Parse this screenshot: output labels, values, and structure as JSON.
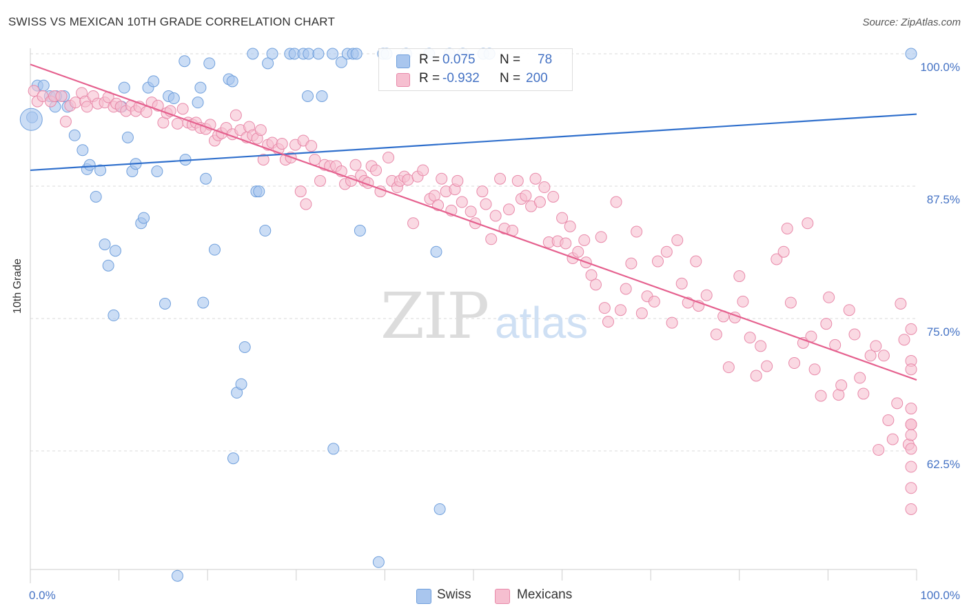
{
  "title": "SWISS VS MEXICAN 10TH GRADE CORRELATION CHART",
  "source": "Source: ZipAtlas.com",
  "watermark": {
    "zip": "ZIP",
    "atlas": "atlas"
  },
  "colors": {
    "swiss_fill": "#a9c6ee",
    "swiss_stroke": "#6f9fdc",
    "swiss_line": "#2f6fcc",
    "mex_fill": "#f6bfd0",
    "mex_stroke": "#e889a9",
    "mex_line": "#e5608e",
    "axis_text": "#4472c4",
    "grid": "#d9d9d9"
  },
  "legend": {
    "r_label": "R =",
    "n_label": "N =",
    "swiss": {
      "r": "0.075",
      "n": "78"
    },
    "mexicans": {
      "r": "-0.932",
      "n": "200"
    }
  },
  "bottom_legend": {
    "swiss": "Swiss",
    "mexicans": "Mexicans"
  },
  "chart_data": {
    "type": "scatter",
    "title": "SWISS VS MEXICAN 10TH GRADE CORRELATION CHART",
    "xlabel": "",
    "ylabel": "10th Grade",
    "xlim": [
      0,
      100
    ],
    "ylim": [
      51,
      102
    ],
    "x_tick_labels": [
      "0.0%",
      "100.0%"
    ],
    "y_ticks": [
      62.5,
      75.0,
      87.5,
      100.0
    ],
    "y_tick_labels": [
      "62.5%",
      "75.0%",
      "87.5%",
      "100.0%"
    ],
    "grid": true,
    "legend_position": "top-center",
    "series": [
      {
        "name": "Swiss",
        "r": 0.075,
        "n": 78,
        "trend": {
          "x0": 0,
          "y0": 89.0,
          "x1": 100,
          "y1": 94.3
        },
        "points": [
          [
            0.2,
            94
          ],
          [
            0.8,
            97
          ],
          [
            1.5,
            97
          ],
          [
            2.2,
            96
          ],
          [
            2.8,
            95
          ],
          [
            3.8,
            96
          ],
          [
            4.2,
            95
          ],
          [
            2.9,
            96
          ],
          [
            5,
            92.3
          ],
          [
            5.9,
            90.9
          ],
          [
            6.4,
            89.1
          ],
          [
            6.7,
            89.5
          ],
          [
            7.4,
            86.5
          ],
          [
            7.9,
            89
          ],
          [
            8.4,
            82
          ],
          [
            8.8,
            80
          ],
          [
            9.6,
            81.4
          ],
          [
            9.4,
            75.3
          ],
          [
            10.3,
            95
          ],
          [
            10.6,
            96.8
          ],
          [
            11,
            92.1
          ],
          [
            11.5,
            88.9
          ],
          [
            11.9,
            89.6
          ],
          [
            12.5,
            84
          ],
          [
            12.8,
            84.5
          ],
          [
            13.3,
            96.8
          ],
          [
            13.9,
            97.4
          ],
          [
            14.3,
            88.9
          ],
          [
            15.2,
            76.4
          ],
          [
            15.6,
            96
          ],
          [
            16.2,
            95.8
          ],
          [
            16.6,
            50.7
          ],
          [
            17.4,
            99.3
          ],
          [
            17.5,
            90
          ],
          [
            18.9,
            95.4
          ],
          [
            19.2,
            96.8
          ],
          [
            19.5,
            76.5
          ],
          [
            19.8,
            88.2
          ],
          [
            20.2,
            99.1
          ],
          [
            20.8,
            81.5
          ],
          [
            22.4,
            97.6
          ],
          [
            22.8,
            97.4
          ],
          [
            22.9,
            61.8
          ],
          [
            23.3,
            68
          ],
          [
            23.8,
            68.8
          ],
          [
            24.2,
            72.3
          ],
          [
            25.1,
            100
          ],
          [
            25.5,
            87
          ],
          [
            25.8,
            87
          ],
          [
            26.5,
            83.3
          ],
          [
            26.8,
            99.1
          ],
          [
            27.3,
            100
          ],
          [
            29.3,
            100
          ],
          [
            29.8,
            100
          ],
          [
            30.8,
            100
          ],
          [
            31.4,
            100
          ],
          [
            31.3,
            96
          ],
          [
            32.5,
            100
          ],
          [
            32.9,
            96
          ],
          [
            34.1,
            100
          ],
          [
            34.2,
            62.7
          ],
          [
            35.1,
            99.2
          ],
          [
            35.8,
            100
          ],
          [
            36.4,
            100
          ],
          [
            36.8,
            100
          ],
          [
            37.2,
            83.3
          ],
          [
            39.3,
            52
          ],
          [
            39.8,
            100
          ],
          [
            40.2,
            100
          ],
          [
            42.4,
            100
          ],
          [
            45,
            100
          ],
          [
            45.8,
            81.3
          ],
          [
            46.2,
            57
          ],
          [
            47.3,
            100
          ],
          [
            48.8,
            100
          ],
          [
            51.1,
            100
          ],
          [
            51.8,
            100
          ],
          [
            99.9,
            100
          ]
        ],
        "big_points": [
          [
            0.1,
            93.8,
            16
          ]
        ]
      },
      {
        "name": "Mexicans",
        "r": -0.932,
        "n": 200,
        "trend": {
          "x0": 0,
          "y0": 99.0,
          "x1": 100,
          "y1": 69.2
        },
        "points": [
          [
            0.4,
            96.5
          ],
          [
            0.8,
            95.5
          ],
          [
            1.4,
            96
          ],
          [
            2.3,
            95.5
          ],
          [
            2.7,
            96
          ],
          [
            3.5,
            96
          ],
          [
            4,
            93.6
          ],
          [
            4.5,
            95.1
          ],
          [
            5.1,
            95.4
          ],
          [
            5.8,
            96.3
          ],
          [
            6.2,
            95.5
          ],
          [
            6.4,
            95
          ],
          [
            7.1,
            96
          ],
          [
            7.6,
            95.3
          ],
          [
            8.4,
            95.4
          ],
          [
            8.8,
            95.9
          ],
          [
            9.4,
            95
          ],
          [
            9.7,
            95.3
          ],
          [
            10.2,
            95
          ],
          [
            10.8,
            94.6
          ],
          [
            11.4,
            95.1
          ],
          [
            11.9,
            94.6
          ],
          [
            12.3,
            95
          ],
          [
            13.1,
            94.5
          ],
          [
            13.7,
            95.4
          ],
          [
            14.4,
            95.1
          ],
          [
            15,
            93.5
          ],
          [
            15.4,
            94.4
          ],
          [
            15.8,
            94.6
          ],
          [
            16.6,
            93.4
          ],
          [
            17.2,
            94.8
          ],
          [
            17.8,
            93.5
          ],
          [
            18.3,
            93.3
          ],
          [
            18.7,
            93.5
          ],
          [
            19.2,
            93
          ],
          [
            19.8,
            92.9
          ],
          [
            20.3,
            93.3
          ],
          [
            20.8,
            91.8
          ],
          [
            21.2,
            92.3
          ],
          [
            21.6,
            92.5
          ],
          [
            22.1,
            93
          ],
          [
            22.8,
            92.4
          ],
          [
            23.2,
            94.2
          ],
          [
            23.7,
            92.8
          ],
          [
            24.4,
            92.1
          ],
          [
            24.7,
            93.1
          ],
          [
            25.1,
            92.3
          ],
          [
            25.6,
            92
          ],
          [
            26,
            92.8
          ],
          [
            26.3,
            90
          ],
          [
            26.8,
            91.4
          ],
          [
            27.3,
            91.6
          ],
          [
            28,
            91
          ],
          [
            28.4,
            91.5
          ],
          [
            28.8,
            90
          ],
          [
            29.4,
            90.2
          ],
          [
            29.9,
            91.4
          ],
          [
            30.5,
            87
          ],
          [
            30.8,
            91.8
          ],
          [
            31.1,
            85.8
          ],
          [
            31.7,
            91.3
          ],
          [
            32.1,
            90
          ],
          [
            32.7,
            88
          ],
          [
            33.2,
            89.5
          ],
          [
            33.8,
            89.4
          ],
          [
            34.5,
            89.4
          ],
          [
            35.1,
            88.9
          ],
          [
            35.5,
            87.7
          ],
          [
            36.2,
            88
          ],
          [
            36.7,
            89.5
          ],
          [
            37.3,
            88.5
          ],
          [
            37.7,
            88
          ],
          [
            38.1,
            87.8
          ],
          [
            38.5,
            89.4
          ],
          [
            39,
            89
          ],
          [
            39.5,
            87
          ],
          [
            40.4,
            90.2
          ],
          [
            40.8,
            88
          ],
          [
            41.4,
            87.4
          ],
          [
            41.7,
            88
          ],
          [
            42.2,
            88.4
          ],
          [
            42.6,
            88.1
          ],
          [
            43.2,
            84
          ],
          [
            43.7,
            88.4
          ],
          [
            44.3,
            89
          ],
          [
            45.1,
            86.3
          ],
          [
            45.6,
            86.6
          ],
          [
            46,
            85.7
          ],
          [
            46.4,
            88.2
          ],
          [
            46.9,
            87
          ],
          [
            47.5,
            85.2
          ],
          [
            47.9,
            87.2
          ],
          [
            48.2,
            88
          ],
          [
            48.7,
            86
          ],
          [
            49.7,
            85.1
          ],
          [
            50.2,
            84
          ],
          [
            51,
            87
          ],
          [
            51.4,
            85.8
          ],
          [
            52,
            82.5
          ],
          [
            52.5,
            84.7
          ],
          [
            53,
            88.2
          ],
          [
            53.5,
            83.5
          ],
          [
            54,
            85.3
          ],
          [
            54.4,
            83.3
          ],
          [
            55,
            88
          ],
          [
            55.4,
            86.3
          ],
          [
            55.9,
            86.6
          ],
          [
            56.5,
            85.6
          ],
          [
            57,
            88.2
          ],
          [
            57.5,
            86
          ],
          [
            58,
            87.4
          ],
          [
            58.5,
            82.2
          ],
          [
            59,
            86.5
          ],
          [
            59.5,
            82.3
          ],
          [
            60,
            84.5
          ],
          [
            60.4,
            82.1
          ],
          [
            60.9,
            83.7
          ],
          [
            61.2,
            80.7
          ],
          [
            61.8,
            81.3
          ],
          [
            62.5,
            82.4
          ],
          [
            62.7,
            80.3
          ],
          [
            63.3,
            79.1
          ],
          [
            63.8,
            78.2
          ],
          [
            64.4,
            82.7
          ],
          [
            64.8,
            76
          ],
          [
            65.2,
            74.7
          ],
          [
            66.1,
            86
          ],
          [
            66.6,
            75.8
          ],
          [
            67.2,
            77.8
          ],
          [
            67.8,
            80.2
          ],
          [
            68.4,
            83.2
          ],
          [
            69,
            75.5
          ],
          [
            69.6,
            77.1
          ],
          [
            70.4,
            76.6
          ],
          [
            70.8,
            80.4
          ],
          [
            71.8,
            81.3
          ],
          [
            72.4,
            74.6
          ],
          [
            73,
            82.4
          ],
          [
            73.5,
            78.3
          ],
          [
            74.2,
            76.5
          ],
          [
            75.1,
            80.4
          ],
          [
            75.4,
            76.2
          ],
          [
            76.3,
            77.2
          ],
          [
            77.4,
            73.5
          ],
          [
            78.2,
            75.2
          ],
          [
            78.8,
            70.4
          ],
          [
            79.5,
            75.1
          ],
          [
            80,
            79
          ],
          [
            80.4,
            76.6
          ],
          [
            81.2,
            73.2
          ],
          [
            81.9,
            69.6
          ],
          [
            82.4,
            72.4
          ],
          [
            83.1,
            70.5
          ],
          [
            84.2,
            80.6
          ],
          [
            85,
            81.3
          ],
          [
            85.4,
            83.5
          ],
          [
            85.8,
            76.5
          ],
          [
            86.2,
            70.8
          ],
          [
            87.2,
            72.7
          ],
          [
            87.7,
            84
          ],
          [
            88.1,
            73.3
          ],
          [
            88.5,
            70.2
          ],
          [
            89.2,
            67.7
          ],
          [
            89.8,
            74.5
          ],
          [
            90.1,
            77
          ],
          [
            90.8,
            72.5
          ],
          [
            91.2,
            67.8
          ],
          [
            91.5,
            68.7
          ],
          [
            92.4,
            75.8
          ],
          [
            93,
            73.5
          ],
          [
            93.6,
            69.4
          ],
          [
            94,
            67.9
          ],
          [
            94.8,
            71.5
          ],
          [
            95.4,
            72.4
          ],
          [
            95.7,
            62.6
          ],
          [
            96.3,
            71.5
          ],
          [
            96.8,
            65.4
          ],
          [
            97.3,
            63.6
          ],
          [
            97.8,
            67
          ],
          [
            98.2,
            76.4
          ],
          [
            98.6,
            73
          ],
          [
            99.1,
            63.1
          ],
          [
            99.5,
            62.7
          ],
          [
            100,
            65
          ],
          [
            100,
            71
          ],
          [
            100.5,
            70.2
          ],
          [
            101,
            74
          ],
          [
            101.4,
            66.5
          ],
          [
            102,
            65
          ],
          [
            102.5,
            64
          ],
          [
            102.9,
            61
          ],
          [
            103.5,
            59
          ],
          [
            104,
            57
          ]
        ],
        "big_points": []
      }
    ]
  }
}
